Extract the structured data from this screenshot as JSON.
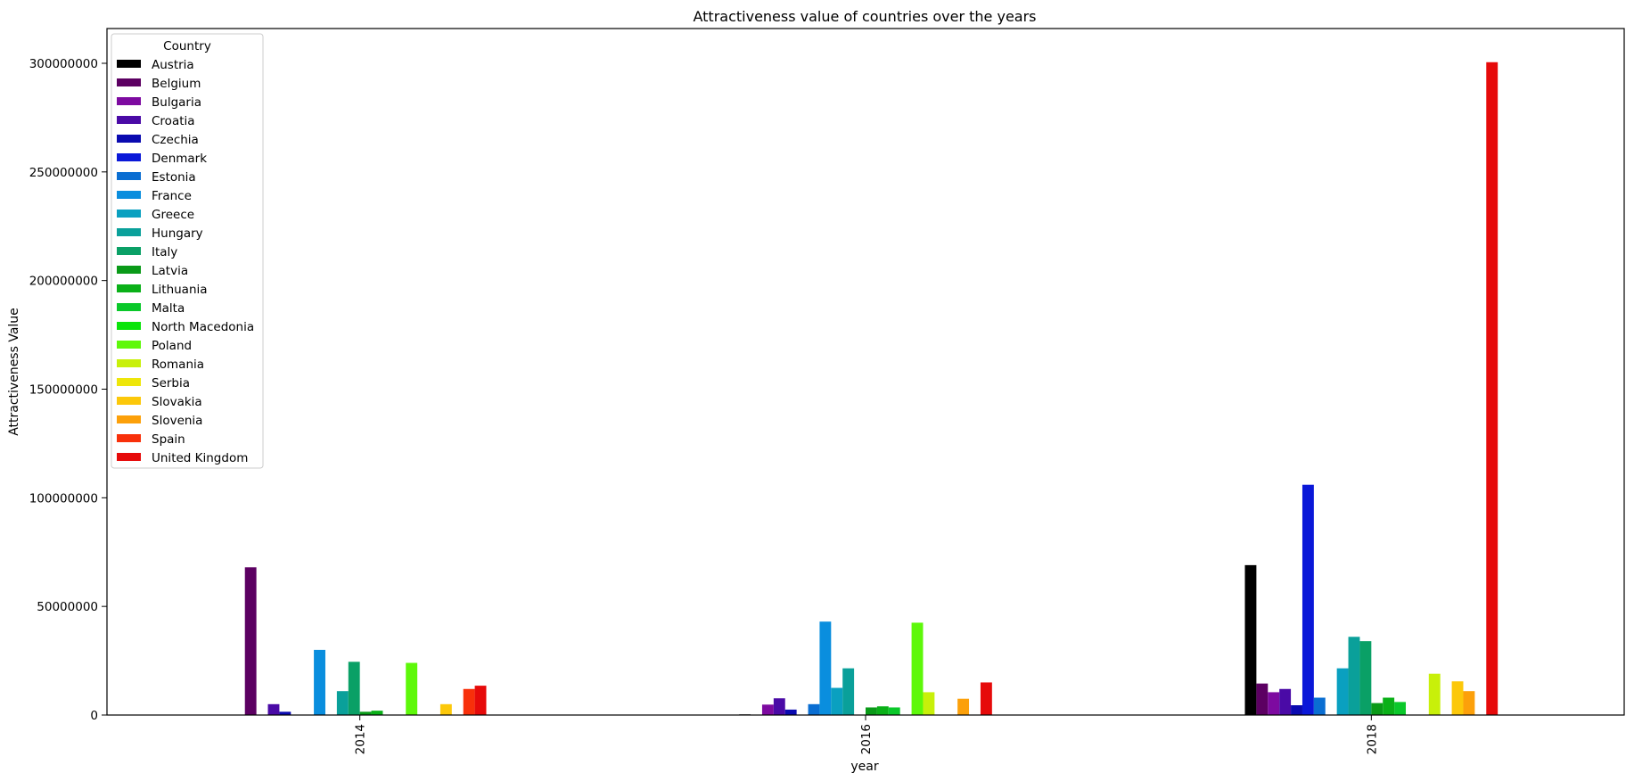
{
  "chart_data": {
    "type": "bar",
    "title": "Attractiveness value of countries over the years",
    "xlabel": "year",
    "ylabel": "Attractiveness Value",
    "categories": [
      "2014",
      "2016",
      "2018"
    ],
    "ylim": [
      0,
      316000000
    ],
    "yticks": [
      0,
      50000000,
      100000000,
      150000000,
      200000000,
      250000000,
      300000000
    ],
    "grid": false,
    "legend_title": "Country",
    "legend_position": "top-left",
    "series": [
      {
        "name": "Austria",
        "color": "#000000",
        "values": [
          0,
          300000,
          69000000
        ]
      },
      {
        "name": "Belgium",
        "color": "#5c0062",
        "values": [
          68000000,
          0,
          14500000
        ]
      },
      {
        "name": "Bulgaria",
        "color": "#7d0aa0",
        "values": [
          0,
          4800000,
          10500000
        ]
      },
      {
        "name": "Croatia",
        "color": "#4a0aa6",
        "values": [
          5000000,
          7700000,
          12000000
        ]
      },
      {
        "name": "Czechia",
        "color": "#0a0ab0",
        "values": [
          1500000,
          2500000,
          4500000
        ]
      },
      {
        "name": "Denmark",
        "color": "#0a18d8",
        "values": [
          0,
          0,
          106000000
        ]
      },
      {
        "name": "Estonia",
        "color": "#0a6ed2",
        "values": [
          0,
          5000000,
          8000000
        ]
      },
      {
        "name": "France",
        "color": "#0a8ede",
        "values": [
          30000000,
          43000000,
          0
        ]
      },
      {
        "name": "Greece",
        "color": "#0aa0c0",
        "values": [
          0,
          12500000,
          21500000
        ]
      },
      {
        "name": "Hungary",
        "color": "#0aa09a",
        "values": [
          11000000,
          21500000,
          36000000
        ]
      },
      {
        "name": "Italy",
        "color": "#0aa066",
        "values": [
          24500000,
          0,
          34000000
        ]
      },
      {
        "name": "Latvia",
        "color": "#0a9a18",
        "values": [
          1500000,
          3500000,
          5500000
        ]
      },
      {
        "name": "Lithuania",
        "color": "#0ab018",
        "values": [
          2000000,
          4000000,
          8000000
        ]
      },
      {
        "name": "Malta",
        "color": "#0ac82a",
        "values": [
          0,
          3500000,
          6000000
        ]
      },
      {
        "name": "North Macedonia",
        "color": "#0ae40a",
        "values": [
          0,
          0,
          0
        ]
      },
      {
        "name": "Poland",
        "color": "#5ef80a",
        "values": [
          24000000,
          42500000,
          0
        ]
      },
      {
        "name": "Romania",
        "color": "#c8f00a",
        "values": [
          0,
          10500000,
          19000000
        ]
      },
      {
        "name": "Serbia",
        "color": "#eee60a",
        "values": [
          0,
          0,
          0
        ]
      },
      {
        "name": "Slovakia",
        "color": "#fcc80a",
        "values": [
          5000000,
          0,
          15500000
        ]
      },
      {
        "name": "Slovenia",
        "color": "#fca00a",
        "values": [
          0,
          7500000,
          11000000
        ]
      },
      {
        "name": "Spain",
        "color": "#f8300a",
        "values": [
          12000000,
          0,
          0
        ]
      },
      {
        "name": "United Kingdom",
        "color": "#e60a0a",
        "values": [
          13500000,
          15000000,
          300500000
        ]
      }
    ]
  }
}
